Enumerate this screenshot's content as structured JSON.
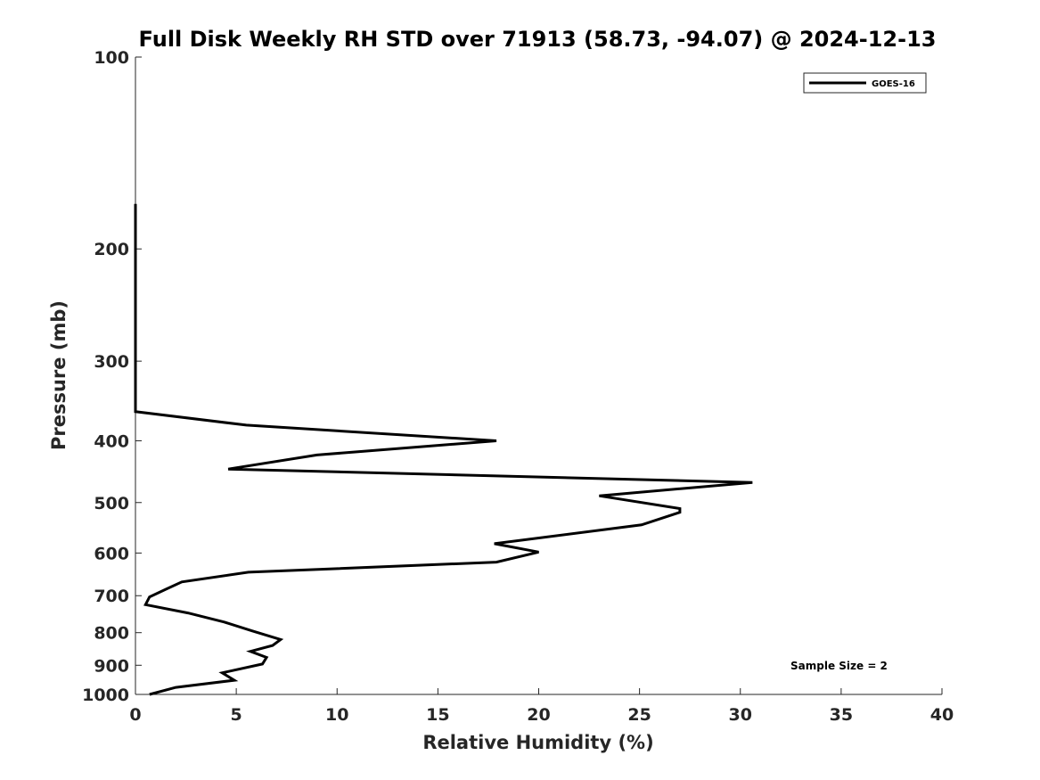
{
  "chart_data": {
    "type": "line",
    "title": "Full Disk Weekly RH STD over 71913 (58.73, -94.07) @ 2024-12-13",
    "xlabel": "Relative Humidity (%)",
    "ylabel": "Pressure (mb)",
    "xlim": [
      0,
      40
    ],
    "ylim": [
      100,
      1000
    ],
    "yscale": "log",
    "y_reversed": true,
    "xticks": [
      0,
      5,
      10,
      15,
      20,
      25,
      30,
      35,
      40
    ],
    "xtick_labels": [
      "0",
      "5",
      "10",
      "15",
      "20",
      "25",
      "30",
      "35",
      "40"
    ],
    "yticks": [
      100,
      200,
      300,
      400,
      500,
      600,
      700,
      800,
      900,
      1000
    ],
    "ytick_labels": [
      "100",
      "200",
      "300",
      "400",
      "500",
      "600",
      "700",
      "800",
      "900",
      "1000"
    ],
    "grid": false,
    "legend_position": "top-right",
    "annotation": "Sample Size = 2",
    "series": [
      {
        "name": "GOES-16",
        "color": "#000000",
        "points": [
          [
            0,
            170
          ],
          [
            0,
            360
          ],
          [
            5.5,
            378
          ],
          [
            17.9,
            400
          ],
          [
            9.0,
            421
          ],
          [
            4.6,
            443
          ],
          [
            30.6,
            465
          ],
          [
            23.0,
            488
          ],
          [
            27.0,
            511
          ],
          [
            27.0,
            518
          ],
          [
            25.1,
            542
          ],
          [
            17.8,
            580
          ],
          [
            20.0,
            598
          ],
          [
            17.9,
            620
          ],
          [
            5.6,
            643
          ],
          [
            2.3,
            666
          ],
          [
            1.5,
            684
          ],
          [
            0.7,
            703
          ],
          [
            0.5,
            723
          ],
          [
            2.6,
            745
          ],
          [
            4.4,
            770
          ],
          [
            5.8,
            795
          ],
          [
            7.2,
            820
          ],
          [
            6.8,
            838
          ],
          [
            5.7,
            856
          ],
          [
            6.5,
            875
          ],
          [
            6.3,
            896
          ],
          [
            4.3,
            925
          ],
          [
            4.9,
            950
          ],
          [
            2.0,
            975
          ],
          [
            0.7,
            1000
          ]
        ]
      }
    ]
  }
}
